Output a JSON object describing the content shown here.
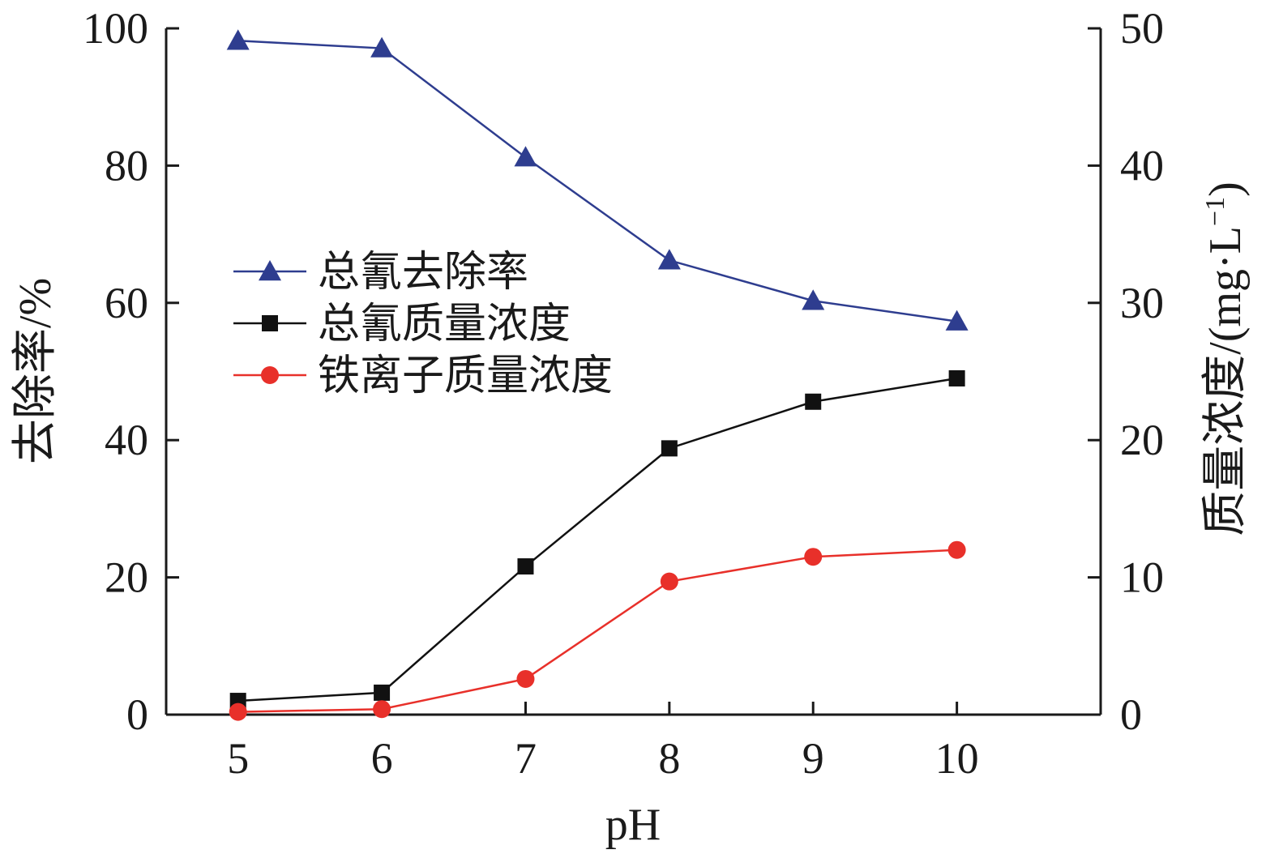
{
  "chart_data": {
    "type": "line",
    "x": [
      5,
      6,
      7,
      8,
      9,
      10
    ],
    "xlabel": "pH",
    "xlim": [
      4.5,
      11
    ],
    "xticks": [
      5,
      6,
      7,
      8,
      9,
      10
    ],
    "ylabel_left": "去除率/%",
    "ylim_left": [
      0,
      100
    ],
    "yticks_left": [
      0,
      20,
      40,
      60,
      80,
      100
    ],
    "ylabel_right": "质量浓度/(mg·L",
    "ylabel_right_sup": "−1",
    "ylabel_right_close": ")",
    "ylim_right": [
      0,
      50
    ],
    "yticks_right": [
      0,
      10,
      20,
      30,
      40,
      50
    ],
    "grid": false,
    "legend_position": "center-left",
    "series": [
      {
        "name": "总氰去除率",
        "axis": "left",
        "marker": "triangle",
        "color": "#2e3d8f",
        "values": [
          98.2,
          97.1,
          81.2,
          66.2,
          60.3,
          57.3
        ]
      },
      {
        "name": "总氰质量浓度",
        "axis": "right",
        "marker": "square",
        "color": "#111111",
        "values": [
          1.0,
          1.6,
          10.8,
          19.4,
          22.8,
          24.5
        ]
      },
      {
        "name": "铁离子质量浓度",
        "axis": "right",
        "marker": "circle",
        "color": "#e8302a",
        "values": [
          0.2,
          0.4,
          2.6,
          9.7,
          11.5,
          12.0
        ]
      }
    ]
  }
}
